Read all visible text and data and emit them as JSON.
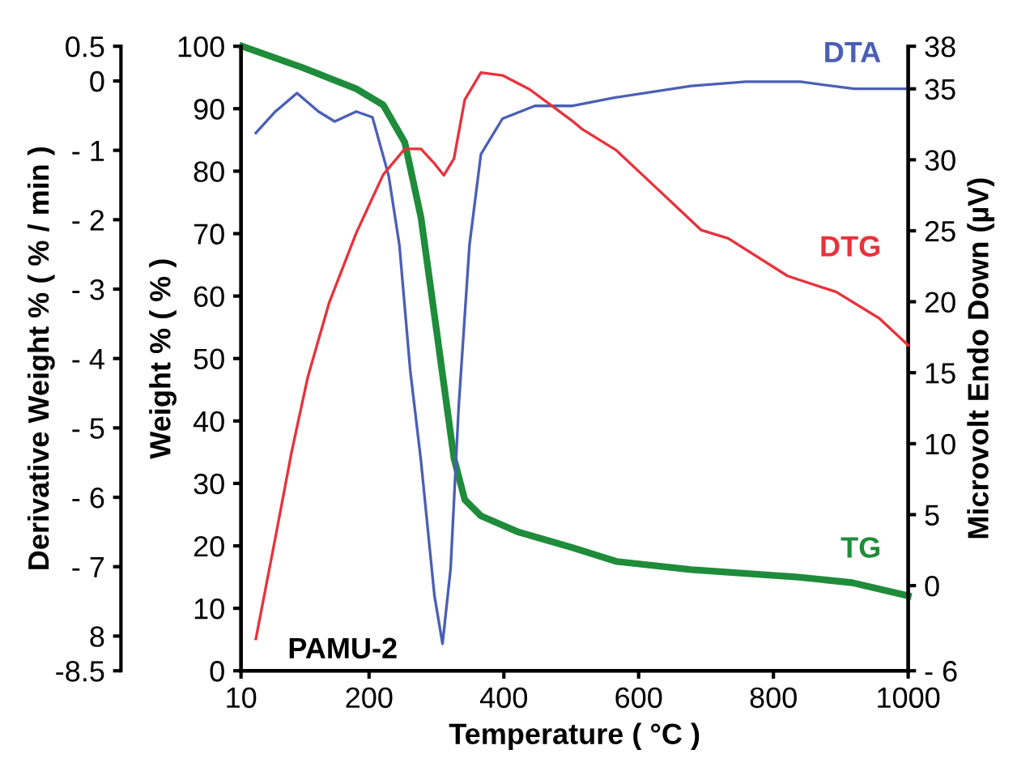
{
  "chart_data": {
    "type": "line",
    "xlabel": "Temperature ( °C )",
    "ylabel": "Weight % ( % )",
    "y2label": "Microvolt Endo Down (µV)",
    "y3label": "Derivative Weight % ( % / min )",
    "xlim": [
      10,
      1000
    ],
    "xticks": [
      10,
      200,
      400,
      600,
      800,
      1000
    ],
    "ylim": [
      0,
      100
    ],
    "yticks": [
      0,
      10,
      20,
      30,
      40,
      50,
      60,
      70,
      80,
      90,
      100
    ],
    "y2lim": [
      -6,
      38
    ],
    "y2ticks": [
      {
        "value": -6,
        "label": "- 6"
      },
      0,
      5,
      10,
      15,
      20,
      25,
      30,
      35,
      38
    ],
    "y3lim": [
      -8.5,
      0.5
    ],
    "y3ticks": [
      -8.5,
      {
        "value": -8,
        "label": "8"
      },
      {
        "value": -7,
        "label": "- 7"
      },
      {
        "value": -6,
        "label": "- 6"
      },
      {
        "value": -5,
        "label": "- 5"
      },
      {
        "value": -4,
        "label": "- 4"
      },
      {
        "value": -3,
        "label": "- 3"
      },
      {
        "value": -2,
        "label": "- 2"
      },
      {
        "value": -1,
        "label": "- 1"
      },
      0,
      0.5
    ],
    "grid": false,
    "legend": false,
    "line_style": "solid",
    "marker": "none",
    "annotations": [
      "PAMU-2"
    ],
    "series": [
      {
        "name": "DTA",
        "color": "#4a5fb5",
        "axis": "y2",
        "x": [
          32,
          61,
          93,
          125,
          149,
          181,
          205,
          229,
          245,
          261,
          277,
          297,
          309,
          321,
          333,
          349,
          366,
          398,
          446,
          502,
          567,
          678,
          759,
          840,
          920,
          1000
        ],
        "values": [
          31.9,
          33.4,
          34.7,
          33.4,
          32.7,
          33.4,
          33,
          28.9,
          24,
          15.2,
          8.8,
          -0.7,
          -4.1,
          1.2,
          12.6,
          24,
          30.4,
          32.9,
          33.8,
          33.8,
          34.4,
          35.2,
          35.5,
          35.5,
          35,
          35
        ]
      },
      {
        "name": "DTG",
        "color": "#e8323c",
        "axis": "y3",
        "x": [
          32,
          61,
          85,
          109,
          141,
          181,
          221,
          253,
          277,
          297,
          311,
          326,
          342,
          366,
          398,
          438,
          470,
          502,
          517,
          567,
          613,
          693,
          733,
          821,
          893,
          957,
          1000
        ],
        "values": [
          -8.04,
          -6.58,
          -5.35,
          -4.27,
          -3.19,
          -2.19,
          -1.35,
          -0.98,
          -0.98,
          -1.19,
          -1.36,
          -1.12,
          -0.27,
          0.12,
          0.08,
          -0.12,
          -0.35,
          -0.58,
          -0.7,
          -1.0,
          -1.42,
          -2.15,
          -2.27,
          -2.81,
          -3.04,
          -3.42,
          -3.81
        ]
      },
      {
        "name": "TG",
        "color": "#1e8c3a",
        "axis": "y",
        "x": [
          12,
          101,
          181,
          221,
          253,
          277,
          301,
          326,
          342,
          366,
          422,
          502,
          567,
          678,
          837,
          917,
          1000
        ],
        "values": [
          100,
          96.6,
          93.2,
          90.6,
          84.6,
          72.6,
          53.8,
          34,
          27.4,
          24.8,
          22.2,
          19.7,
          17.5,
          16.2,
          15,
          14.1,
          12
        ]
      }
    ]
  }
}
